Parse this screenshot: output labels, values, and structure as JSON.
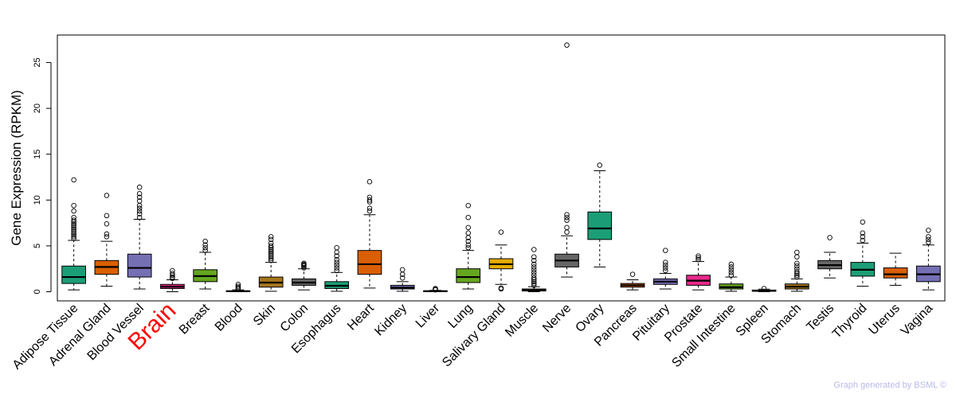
{
  "chart_data": {
    "type": "boxplot",
    "title": "",
    "xlabel": "",
    "ylabel": "Gene Expression (RPKM)",
    "ylim": [
      -1,
      28
    ],
    "yticks": [
      0,
      5,
      10,
      15,
      20,
      25
    ],
    "ytick_labels": [
      "0",
      "5",
      "10",
      "15",
      "20",
      "25"
    ],
    "highlight": "Brain",
    "highlight_color": "#ff0000",
    "categories": [
      "Adipose Tissue",
      "Adrenal Gland",
      "Blood Vessel",
      "Brain",
      "Breast",
      "Blood",
      "Skin",
      "Colon",
      "Esophagus",
      "Heart",
      "Kidney",
      "Liver",
      "Lung",
      "Salivary Gland",
      "Muscle",
      "Nerve",
      "Ovary",
      "Pancreas",
      "Pituitary",
      "Prostate",
      "Small Intestine",
      "Spleen",
      "Stomach",
      "Testis",
      "Thyroid",
      "Uterus",
      "Vagina"
    ],
    "colors": [
      "#1b9e77",
      "#d95f02",
      "#7570b3",
      "#e7298a",
      "#66a61e",
      "#e6ab02",
      "#a6761d",
      "#666666",
      "#1b9e77",
      "#d95f02",
      "#7570b3",
      "#e7298a",
      "#66a61e",
      "#e6ab02",
      "#a6761d",
      "#666666",
      "#1b9e77",
      "#d95f02",
      "#7570b3",
      "#e7298a",
      "#66a61e",
      "#e6ab02",
      "#a6761d",
      "#666666",
      "#1b9e77",
      "#d95f02",
      "#7570b3"
    ],
    "boxes": [
      {
        "whislo": 0.2,
        "q1": 0.9,
        "med": 1.6,
        "q3": 2.8,
        "whishi": 5.6,
        "fliers": [
          5.8,
          6.0,
          6.2,
          6.4,
          6.6,
          6.8,
          7.0,
          7.2,
          7.4,
          7.6,
          7.8,
          8.1,
          8.8,
          9.4,
          12.2
        ]
      },
      {
        "whislo": 0.6,
        "q1": 1.9,
        "med": 2.7,
        "q3": 3.4,
        "whishi": 5.5,
        "fliers": [
          6.0,
          6.3,
          7.4,
          8.3,
          10.5
        ]
      },
      {
        "whislo": 0.3,
        "q1": 1.6,
        "med": 2.6,
        "q3": 4.1,
        "whishi": 7.9,
        "fliers": [
          8.1,
          8.5,
          8.8,
          9.1,
          9.4,
          9.9,
          10.3,
          10.7,
          11.4
        ]
      },
      {
        "whislo": 0.0,
        "q1": 0.35,
        "med": 0.55,
        "q3": 0.8,
        "whishi": 1.3,
        "fliers": [
          1.45,
          1.6,
          1.8,
          2.0,
          2.3
        ]
      },
      {
        "whislo": 0.3,
        "q1": 1.1,
        "med": 1.7,
        "q3": 2.4,
        "whishi": 4.3,
        "fliers": [
          4.5,
          4.8,
          5.1,
          5.5
        ]
      },
      {
        "whislo": 0.0,
        "q1": 0.02,
        "med": 0.05,
        "q3": 0.1,
        "whishi": 0.2,
        "fliers": [
          0.3,
          0.45,
          0.6,
          0.8
        ]
      },
      {
        "whislo": 0.05,
        "q1": 0.5,
        "med": 1.0,
        "q3": 1.6,
        "whishi": 3.2,
        "fliers": [
          3.4,
          3.6,
          3.8,
          4.0,
          4.2,
          4.4,
          4.6,
          4.8,
          5.0,
          5.3,
          5.7,
          6.0
        ]
      },
      {
        "whislo": 0.2,
        "q1": 0.7,
        "med": 1.0,
        "q3": 1.4,
        "whishi": 2.5,
        "fliers": [
          2.6,
          2.8,
          2.9,
          3.0,
          3.1
        ]
      },
      {
        "whislo": 0.05,
        "q1": 0.35,
        "med": 0.65,
        "q3": 1.1,
        "whishi": 2.1,
        "fliers": [
          2.3,
          2.6,
          2.9,
          3.2,
          3.5,
          3.9,
          4.3,
          4.8
        ]
      },
      {
        "whislo": 0.4,
        "q1": 1.9,
        "med": 3.0,
        "q3": 4.5,
        "whishi": 8.4,
        "fliers": [
          8.8,
          9.1,
          9.8,
          10.0,
          10.3,
          12.0
        ]
      },
      {
        "whislo": 0.05,
        "q1": 0.3,
        "med": 0.45,
        "q3": 0.7,
        "whishi": 1.1,
        "fliers": [
          1.5,
          1.9,
          2.4
        ]
      },
      {
        "whislo": 0.0,
        "q1": 0.03,
        "med": 0.06,
        "q3": 0.1,
        "whishi": 0.15,
        "fliers": [
          0.2,
          0.3,
          0.35
        ]
      },
      {
        "whislo": 0.3,
        "q1": 1.0,
        "med": 1.6,
        "q3": 2.5,
        "whishi": 4.5,
        "fliers": [
          4.8,
          5.1,
          5.5,
          5.9,
          6.4,
          7.0,
          8.1,
          9.4
        ]
      },
      {
        "whislo": 0.8,
        "q1": 2.5,
        "med": 3.0,
        "q3": 3.6,
        "whishi": 5.1,
        "fliers": [
          0.3,
          0.4,
          6.5
        ]
      },
      {
        "whislo": 0.0,
        "q1": 0.08,
        "med": 0.15,
        "q3": 0.3,
        "whishi": 0.55,
        "fliers": [
          0.7,
          0.9,
          1.1,
          1.3,
          1.5,
          1.8,
          2.1,
          2.4,
          2.7,
          3.0,
          3.4,
          3.8,
          4.6
        ]
      },
      {
        "whislo": 1.6,
        "q1": 2.7,
        "med": 3.4,
        "q3": 4.1,
        "whishi": 6.1,
        "fliers": [
          6.5,
          7.0,
          7.8,
          8.1,
          8.4,
          26.9
        ]
      },
      {
        "whislo": 2.7,
        "q1": 5.7,
        "med": 6.9,
        "q3": 8.7,
        "whishi": 13.2,
        "fliers": [
          13.8
        ]
      },
      {
        "whislo": 0.2,
        "q1": 0.5,
        "med": 0.7,
        "q3": 0.9,
        "whishi": 1.3,
        "fliers": [
          1.9
        ]
      },
      {
        "whislo": 0.3,
        "q1": 0.8,
        "med": 1.1,
        "q3": 1.4,
        "whishi": 2.0,
        "fliers": [
          2.3,
          2.6,
          2.9,
          3.2,
          4.5
        ]
      },
      {
        "whislo": 0.2,
        "q1": 0.7,
        "med": 1.2,
        "q3": 1.8,
        "whishi": 3.3,
        "fliers": [
          3.5,
          3.7,
          3.9
        ]
      },
      {
        "whislo": 0.05,
        "q1": 0.3,
        "med": 0.5,
        "q3": 0.85,
        "whishi": 1.6,
        "fliers": [
          1.8,
          2.1,
          2.4,
          2.7,
          3.0
        ]
      },
      {
        "whislo": 0.0,
        "q1": 0.05,
        "med": 0.1,
        "q3": 0.18,
        "whishi": 0.28,
        "fliers": [
          0.35
        ]
      },
      {
        "whislo": 0.05,
        "q1": 0.3,
        "med": 0.55,
        "q3": 0.85,
        "whishi": 1.4,
        "fliers": [
          1.6,
          1.8,
          2.0,
          2.2,
          2.5,
          2.8,
          3.1,
          3.8,
          4.3
        ]
      },
      {
        "whislo": 1.5,
        "q1": 2.5,
        "med": 2.9,
        "q3": 3.4,
        "whishi": 4.3,
        "fliers": [
          5.9
        ]
      },
      {
        "whislo": 0.6,
        "q1": 1.7,
        "med": 2.4,
        "q3": 3.2,
        "whishi": 5.3,
        "fliers": [
          5.6,
          6.0,
          6.4,
          7.6
        ]
      },
      {
        "whislo": 0.7,
        "q1": 1.5,
        "med": 1.9,
        "q3": 2.6,
        "whishi": 4.2,
        "fliers": []
      },
      {
        "whislo": 0.2,
        "q1": 1.1,
        "med": 1.9,
        "q3": 2.8,
        "whishi": 5.1,
        "fliers": [
          5.4,
          5.7,
          6.0,
          6.7
        ]
      }
    ]
  },
  "footer": {
    "credit": "Graph generated by BSML ©"
  }
}
